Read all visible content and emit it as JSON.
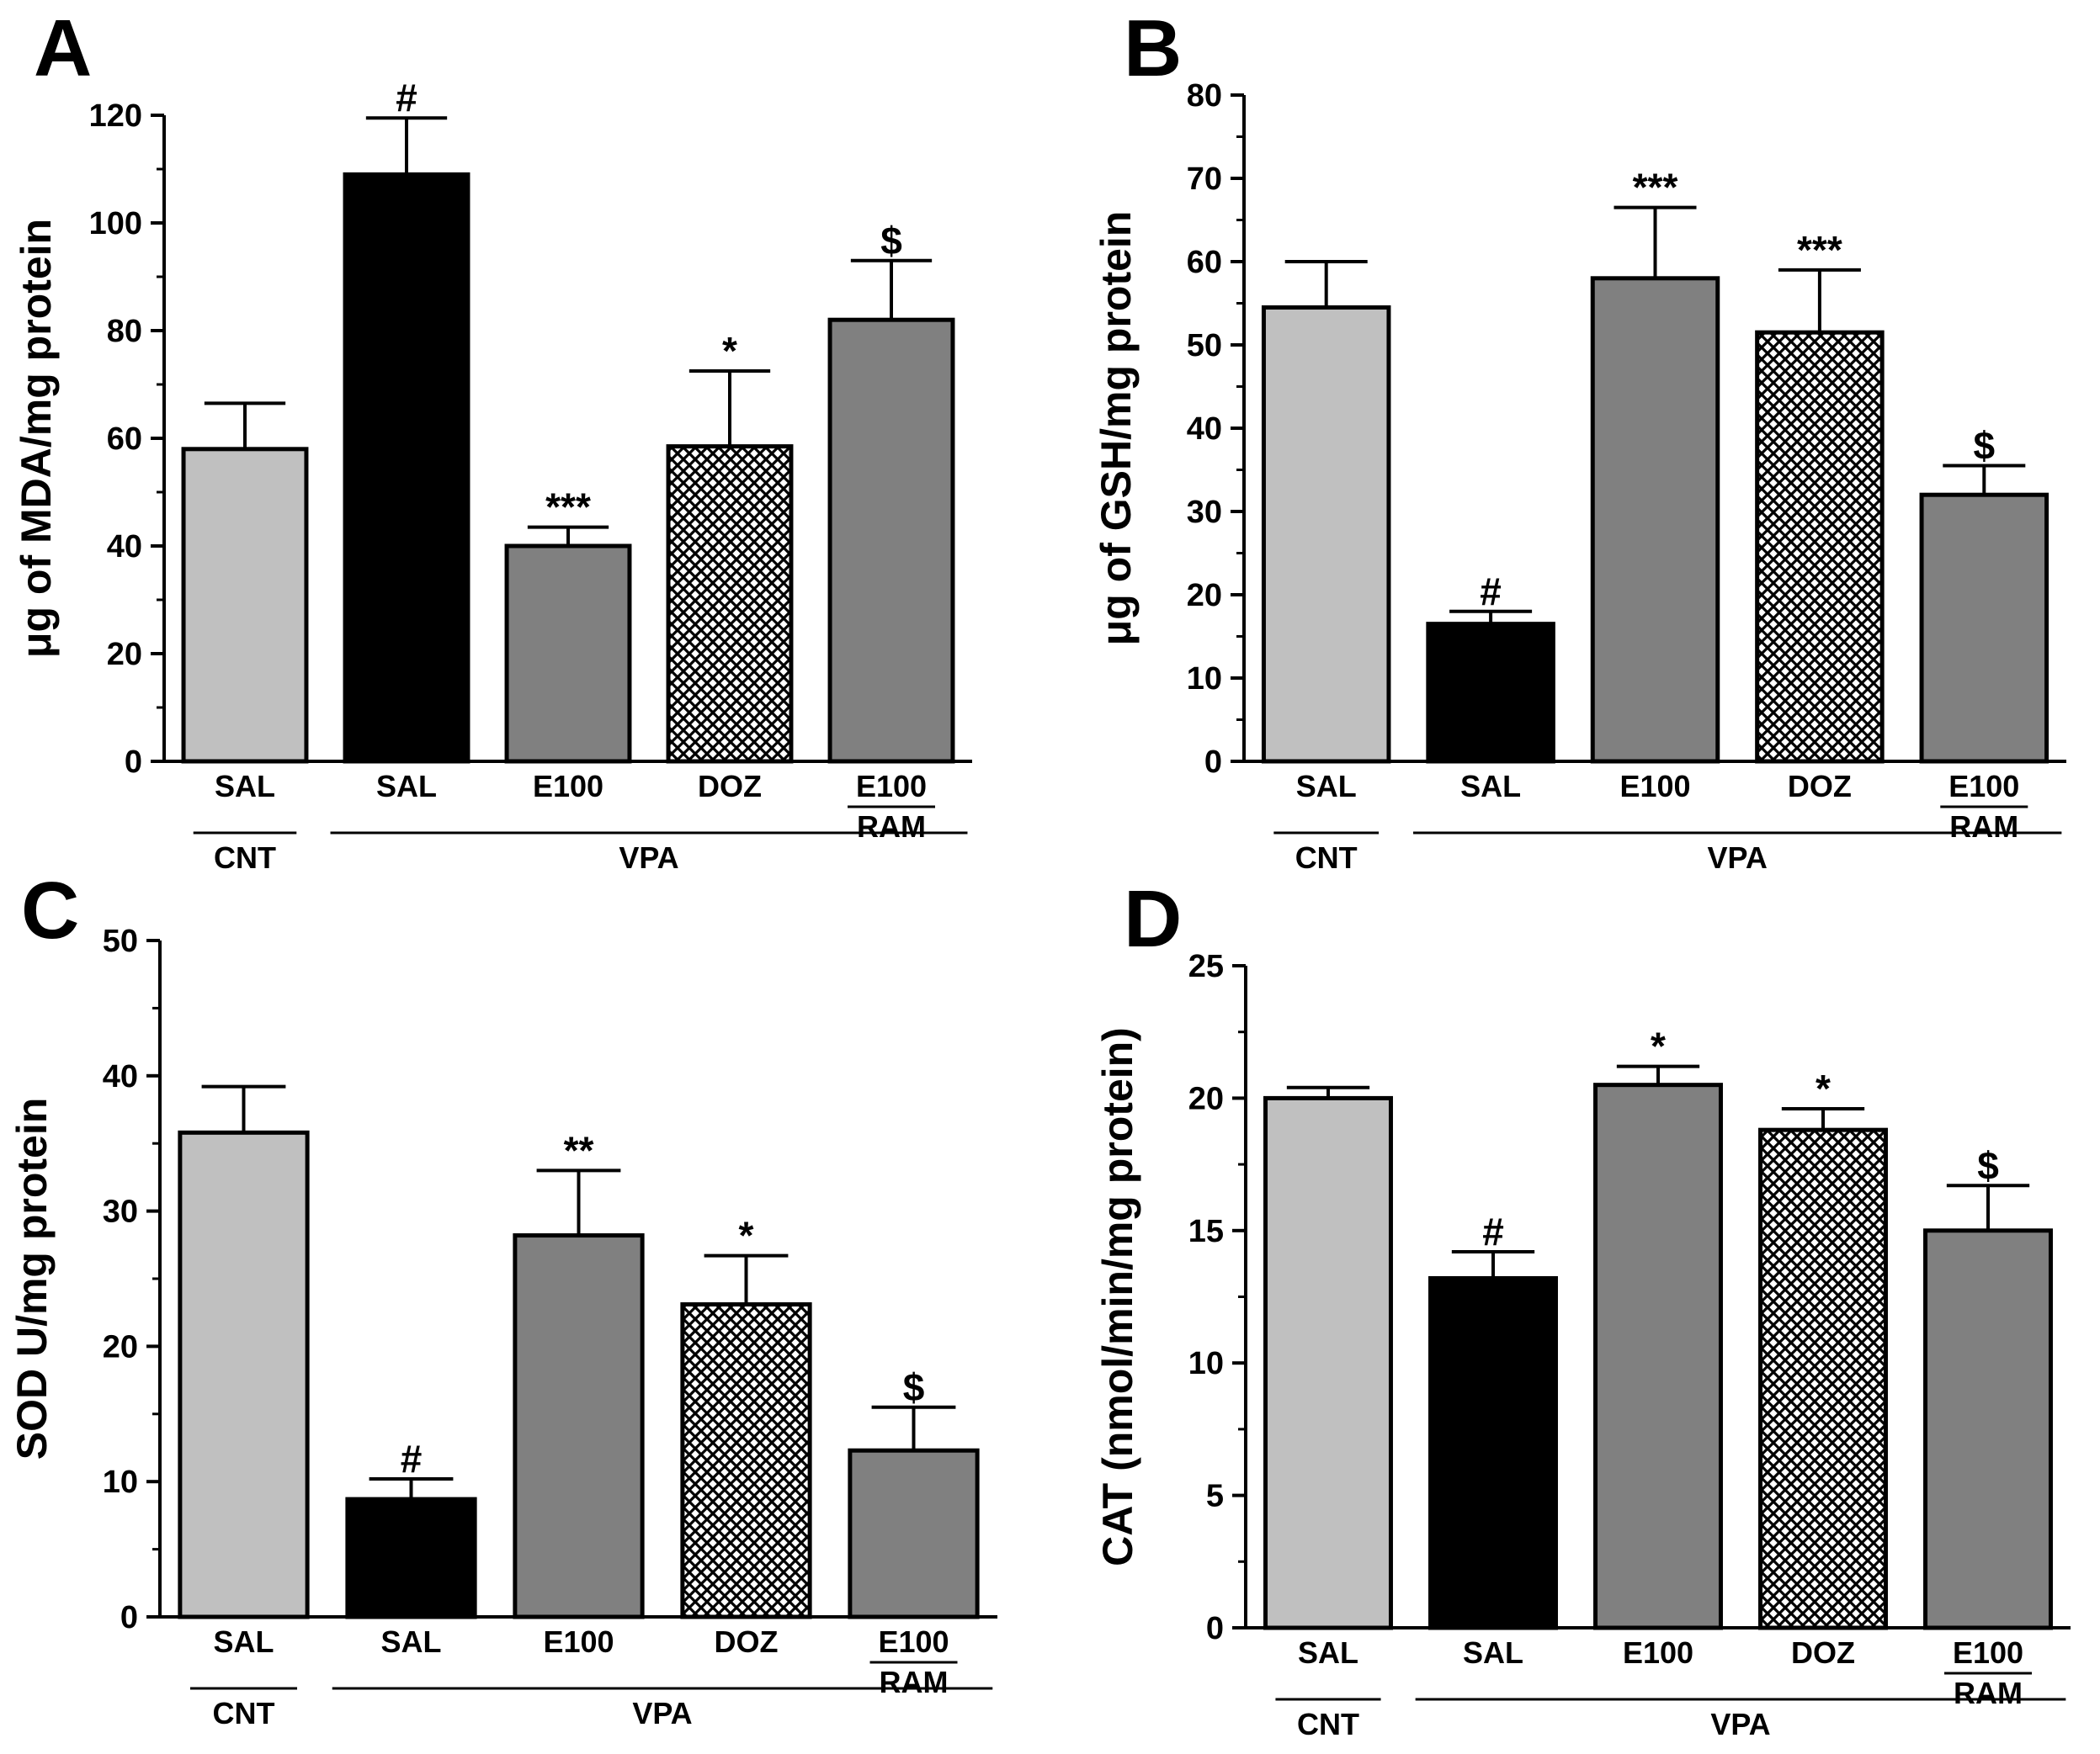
{
  "colors": {
    "light_gray": "#c0c0c0",
    "black": "#000000",
    "dark_gray": "#808080",
    "crosshatch": "#000000"
  },
  "chart_data": [
    {
      "type": "bar",
      "panel_label": "A",
      "ylabel": "μg of MDA/mg protein",
      "ylim": [
        0,
        120
      ],
      "yticks": [
        0,
        20,
        40,
        60,
        80,
        100,
        120
      ],
      "categories": [
        {
          "label": "SAL",
          "sublabel": ""
        },
        {
          "label": "SAL",
          "sublabel": ""
        },
        {
          "label": "E100",
          "sublabel": ""
        },
        {
          "label": "DOZ",
          "sublabel": ""
        },
        {
          "label": "E100",
          "sublabel": "RAM"
        }
      ],
      "groups": [
        {
          "label": "CNT",
          "categories": [
            0
          ]
        },
        {
          "label": "VPA",
          "categories": [
            1,
            2,
            3,
            4
          ]
        }
      ],
      "values": [
        58,
        109,
        40,
        58.5,
        82
      ],
      "errors": [
        8.5,
        10.5,
        3.5,
        14,
        11
      ],
      "fills": [
        "light_gray",
        "black",
        "dark_gray",
        "crosshatch",
        "dark_gray"
      ],
      "annotations": [
        "",
        "#",
        "***",
        "*",
        "$"
      ]
    },
    {
      "type": "bar",
      "panel_label": "B",
      "ylabel": "μg of GSH/mg protein",
      "ylim": [
        0,
        80
      ],
      "yticks": [
        0,
        10,
        20,
        30,
        40,
        50,
        60,
        70,
        80
      ],
      "categories": [
        {
          "label": "SAL",
          "sublabel": ""
        },
        {
          "label": "SAL",
          "sublabel": ""
        },
        {
          "label": "E100",
          "sublabel": ""
        },
        {
          "label": "DOZ",
          "sublabel": ""
        },
        {
          "label": "E100",
          "sublabel": "RAM"
        }
      ],
      "groups": [
        {
          "label": "CNT",
          "categories": [
            0
          ]
        },
        {
          "label": "VPA",
          "categories": [
            1,
            2,
            3,
            4
          ]
        }
      ],
      "values": [
        54.5,
        16.5,
        58,
        51.5,
        32
      ],
      "errors": [
        5.5,
        1.5,
        8.5,
        7.5,
        3.5
      ],
      "fills": [
        "light_gray",
        "black",
        "dark_gray",
        "crosshatch",
        "dark_gray"
      ],
      "annotations": [
        "",
        "#",
        "***",
        "***",
        "$"
      ]
    },
    {
      "type": "bar",
      "panel_label": "C",
      "ylabel": "SOD U/mg protein",
      "ylim": [
        0,
        50
      ],
      "yticks": [
        0,
        10,
        20,
        30,
        40,
        50
      ],
      "categories": [
        {
          "label": "SAL",
          "sublabel": ""
        },
        {
          "label": "SAL",
          "sublabel": ""
        },
        {
          "label": "E100",
          "sublabel": ""
        },
        {
          "label": "DOZ",
          "sublabel": ""
        },
        {
          "label": "E100",
          "sublabel": "RAM"
        }
      ],
      "groups": [
        {
          "label": "CNT",
          "categories": [
            0
          ]
        },
        {
          "label": "VPA",
          "categories": [
            1,
            2,
            3,
            4
          ]
        }
      ],
      "values": [
        35.8,
        8.7,
        28.2,
        23.1,
        12.3
      ],
      "errors": [
        3.4,
        1.5,
        4.8,
        3.6,
        3.2
      ],
      "fills": [
        "light_gray",
        "black",
        "dark_gray",
        "crosshatch",
        "dark_gray"
      ],
      "annotations": [
        "",
        "#",
        "**",
        "*",
        "$"
      ]
    },
    {
      "type": "bar",
      "panel_label": "D",
      "ylabel": "CAT (nmol/min/mg protein)",
      "ylim": [
        0,
        25
      ],
      "yticks": [
        0,
        5,
        10,
        15,
        20,
        25
      ],
      "categories": [
        {
          "label": "SAL",
          "sublabel": ""
        },
        {
          "label": "SAL",
          "sublabel": ""
        },
        {
          "label": "E100",
          "sublabel": ""
        },
        {
          "label": "DOZ",
          "sublabel": ""
        },
        {
          "label": "E100",
          "sublabel": "RAM"
        }
      ],
      "groups": [
        {
          "label": "CNT",
          "categories": [
            0
          ]
        },
        {
          "label": "VPA",
          "categories": [
            1,
            2,
            3,
            4
          ]
        }
      ],
      "values": [
        20,
        13.2,
        20.5,
        18.8,
        15
      ],
      "errors": [
        0.4,
        1,
        0.7,
        0.8,
        1.7
      ],
      "fills": [
        "light_gray",
        "black",
        "dark_gray",
        "crosshatch",
        "dark_gray"
      ],
      "annotations": [
        "",
        "#",
        "*",
        "*",
        "$"
      ]
    }
  ]
}
